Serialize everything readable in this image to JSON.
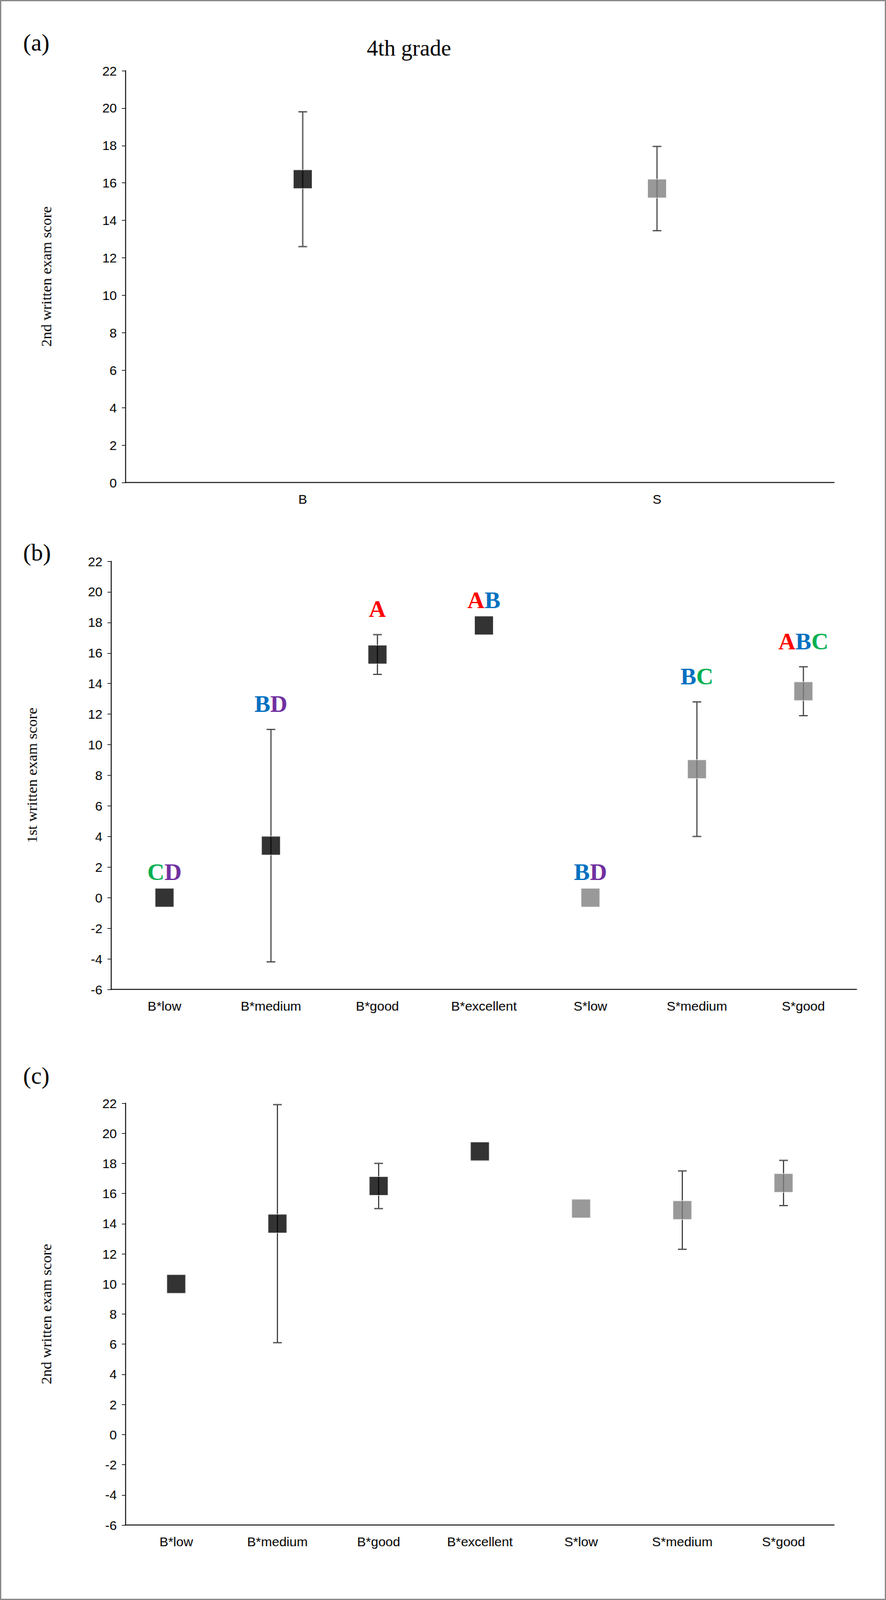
{
  "chart_data": [
    {
      "type": "scatter",
      "title": "(a)",
      "annotation": "4th grade",
      "ylabel": "2nd written exam score",
      "categories": [
        "B",
        "S"
      ],
      "values": [
        16.2,
        15.7
      ],
      "errors": [
        3.6,
        2.25
      ],
      "colors": [
        "#000000",
        "#808080"
      ],
      "marker": "square",
      "ylim": [
        0,
        22
      ],
      "yticks": [
        0,
        2,
        4,
        6,
        8,
        10,
        12,
        14,
        16,
        18,
        20,
        22
      ],
      "grid": false
    },
    {
      "type": "scatter",
      "title": "(b)",
      "ylabel": "1st written exam score",
      "categories": [
        "B*low",
        "B*medium",
        "B*good",
        "B*excellent",
        "S*low",
        "S*medium",
        "S*good"
      ],
      "values": [
        0,
        3.4,
        15.9,
        17.8,
        0,
        8.4,
        13.5
      ],
      "errors": [
        null,
        7.6,
        1.3,
        null,
        null,
        4.4,
        1.6
      ],
      "colors": [
        "#000000",
        "#000000",
        "#000000",
        "#000000",
        "#808080",
        "#808080",
        "#808080"
      ],
      "marker": "square",
      "annotations": [
        "CD",
        "BD",
        "A",
        "AB",
        "BD",
        "BC",
        "ABC"
      ],
      "annotation_colors": {
        "A": "#ff0000",
        "B": "#0070c0",
        "C": "#00b050",
        "D": "#7030a0"
      },
      "ylim": [
        -6,
        22
      ],
      "yticks": [
        -6,
        -4,
        -2,
        0,
        2,
        4,
        6,
        8,
        10,
        12,
        14,
        16,
        18,
        20,
        22
      ],
      "grid": false
    },
    {
      "type": "scatter",
      "title": "(c)",
      "ylabel": "2nd written exam score",
      "categories": [
        "B*low",
        "B*medium",
        "B*good",
        "B*excellent",
        "S*low",
        "S*medium",
        "S*good"
      ],
      "values": [
        10.0,
        14.0,
        16.5,
        18.8,
        15.0,
        14.9,
        16.7
      ],
      "errors": [
        null,
        7.9,
        1.5,
        null,
        null,
        2.6,
        1.5
      ],
      "colors": [
        "#000000",
        "#000000",
        "#000000",
        "#000000",
        "#808080",
        "#808080",
        "#808080"
      ],
      "marker": "square",
      "ylim": [
        -6,
        22
      ],
      "yticks": [
        -6,
        -4,
        -2,
        0,
        2,
        4,
        6,
        8,
        10,
        12,
        14,
        16,
        18,
        20,
        22
      ],
      "grid": false
    }
  ]
}
